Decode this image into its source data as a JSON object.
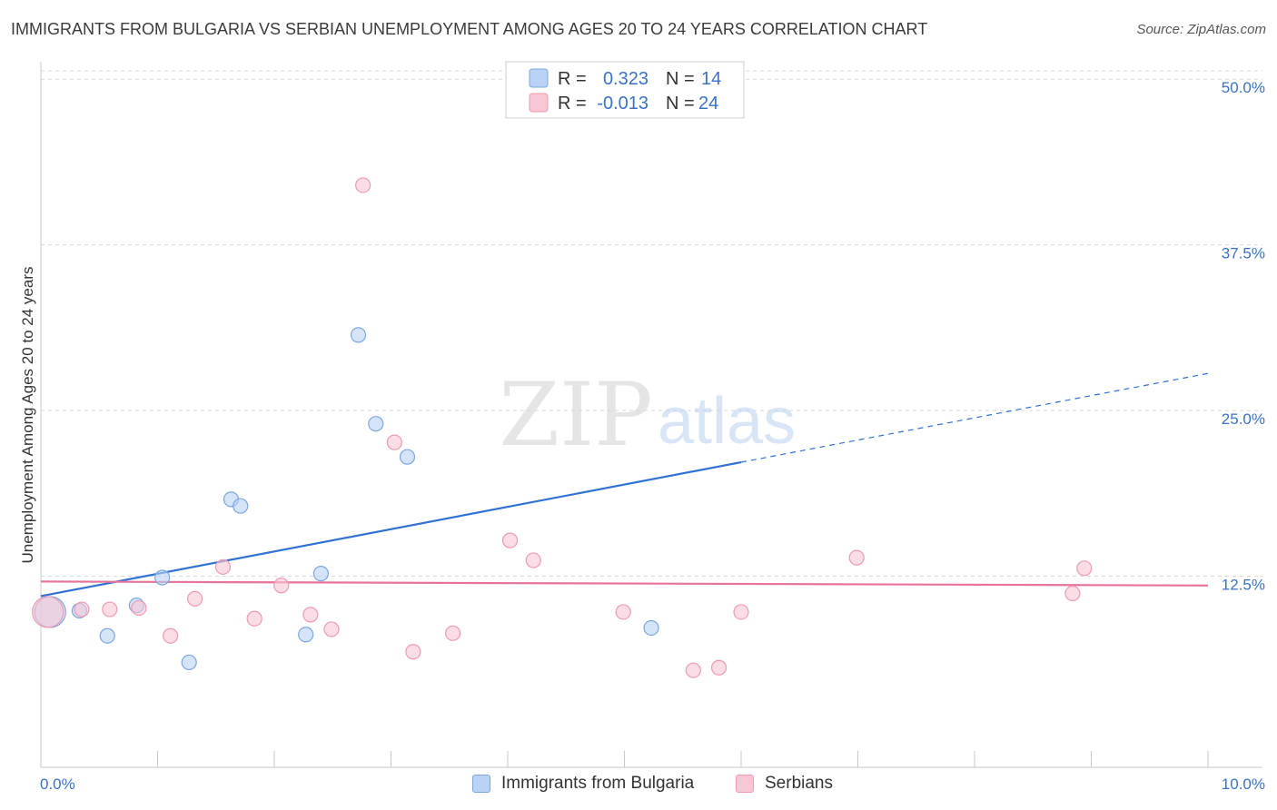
{
  "title": "IMMIGRANTS FROM BULGARIA VS SERBIAN UNEMPLOYMENT AMONG AGES 20 TO 24 YEARS CORRELATION CHART",
  "source": "Source: ZipAtlas.com",
  "watermark": {
    "zip": "ZIP",
    "atlas": "atlas"
  },
  "colors": {
    "bulgaria_fill": "#b9d2f5",
    "bulgaria_stroke": "#7ba7e0",
    "bulgaria_line": "#2f72d4",
    "serbia_fill": "#f9c6d4",
    "serbia_stroke": "#ee9ab2",
    "serbia_line": "#e8739b",
    "value_text": "#3a72c8",
    "grid": "#d9d9d9"
  },
  "legend_top": [
    {
      "r_label": "R =",
      "r_value": "0.323",
      "n_label": "N =",
      "n_value": "14"
    },
    {
      "r_label": "R =",
      "r_value": "-0.013",
      "n_label": "N =",
      "n_value": "24"
    }
  ],
  "chart_data": {
    "type": "scatter",
    "xlabel": "",
    "ylabel": "Unemployment Among Ages 20 to 24 years",
    "xlim": [
      0,
      10
    ],
    "ylim": [
      0,
      52
    ],
    "x_tick_labels": [
      "0.0%",
      "10.0%"
    ],
    "y_ticks": [
      12.5,
      25.0,
      37.5,
      50.0
    ],
    "y_tick_labels": [
      "12.5%",
      "25.0%",
      "37.5%",
      "50.0%"
    ],
    "grid": true,
    "legend_position": "bottom-center",
    "series": [
      {
        "name": "Immigrants from Bulgaria",
        "points": [
          {
            "x": 0.08,
            "y": 9.8,
            "large": true
          },
          {
            "x": 0.33,
            "y": 9.9
          },
          {
            "x": 0.57,
            "y": 8.0
          },
          {
            "x": 0.82,
            "y": 10.3
          },
          {
            "x": 1.04,
            "y": 12.4
          },
          {
            "x": 1.27,
            "y": 6.0
          },
          {
            "x": 1.63,
            "y": 18.3
          },
          {
            "x": 1.71,
            "y": 17.8
          },
          {
            "x": 2.27,
            "y": 8.1
          },
          {
            "x": 2.4,
            "y": 12.7
          },
          {
            "x": 2.72,
            "y": 30.7
          },
          {
            "x": 2.87,
            "y": 24.0
          },
          {
            "x": 3.14,
            "y": 21.5
          },
          {
            "x": 5.23,
            "y": 8.6
          }
        ],
        "trend": {
          "x1": 0,
          "y1": 11.0,
          "x2": 6.0,
          "y2": 21.1,
          "dash_to_x": 10,
          "dash_to_y": 27.8
        }
      },
      {
        "name": "Serbians",
        "points": [
          {
            "x": 0.06,
            "y": 9.8,
            "large": true
          },
          {
            "x": 0.35,
            "y": 10.0
          },
          {
            "x": 0.59,
            "y": 10.0
          },
          {
            "x": 0.84,
            "y": 10.1
          },
          {
            "x": 1.11,
            "y": 8.0
          },
          {
            "x": 1.32,
            "y": 10.8
          },
          {
            "x": 1.56,
            "y": 13.2
          },
          {
            "x": 1.83,
            "y": 9.3
          },
          {
            "x": 2.06,
            "y": 11.8
          },
          {
            "x": 2.31,
            "y": 9.6
          },
          {
            "x": 2.49,
            "y": 8.5
          },
          {
            "x": 2.76,
            "y": 42.0
          },
          {
            "x": 3.03,
            "y": 22.6
          },
          {
            "x": 3.19,
            "y": 6.8
          },
          {
            "x": 3.53,
            "y": 8.2
          },
          {
            "x": 4.02,
            "y": 15.2
          },
          {
            "x": 4.22,
            "y": 13.7
          },
          {
            "x": 4.99,
            "y": 9.8
          },
          {
            "x": 5.59,
            "y": 5.4
          },
          {
            "x": 5.81,
            "y": 5.6
          },
          {
            "x": 6.0,
            "y": 9.8
          },
          {
            "x": 6.99,
            "y": 13.9
          },
          {
            "x": 8.84,
            "y": 11.2
          },
          {
            "x": 8.94,
            "y": 13.1
          }
        ],
        "trend": {
          "x1": 0,
          "y1": 12.1,
          "x2": 10,
          "y2": 11.8
        }
      }
    ]
  }
}
